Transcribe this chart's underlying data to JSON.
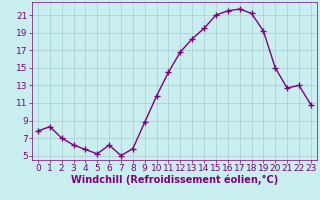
{
  "x": [
    0,
    1,
    2,
    3,
    4,
    5,
    6,
    7,
    8,
    9,
    10,
    11,
    12,
    13,
    14,
    15,
    16,
    17,
    18,
    19,
    20,
    21,
    22,
    23
  ],
  "y": [
    7.8,
    8.3,
    7.0,
    6.2,
    5.7,
    5.2,
    6.2,
    5.0,
    5.8,
    8.8,
    11.8,
    14.5,
    16.8,
    18.3,
    19.5,
    21.0,
    21.5,
    21.7,
    21.2,
    19.2,
    15.0,
    12.7,
    13.0,
    10.8
  ],
  "line_color": "#800080",
  "marker": "+",
  "marker_size": 4,
  "marker_linewidth": 1.0,
  "bg_color": "#c8eef0",
  "grid_color": "#aacccc",
  "xlabel": "Windchill (Refroidissement éolien,°C)",
  "ylabel": "",
  "xlabel_fontsize": 7,
  "yticks": [
    5,
    7,
    9,
    11,
    13,
    15,
    17,
    19,
    21
  ],
  "xticks": [
    0,
    1,
    2,
    3,
    4,
    5,
    6,
    7,
    8,
    9,
    10,
    11,
    12,
    13,
    14,
    15,
    16,
    17,
    18,
    19,
    20,
    21,
    22,
    23
  ],
  "ylim": [
    4.5,
    22.5
  ],
  "xlim": [
    -0.5,
    23.5
  ],
  "tick_color": "#800080",
  "tick_fontsize": 6.5,
  "line_width": 1.0
}
